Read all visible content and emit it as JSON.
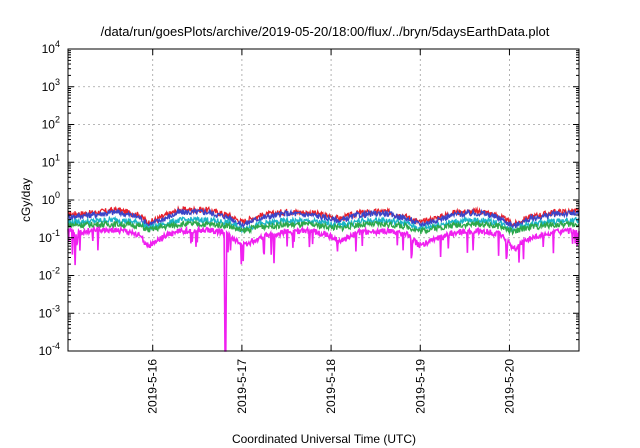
{
  "chart_data": {
    "type": "line",
    "title": "/data/run/goesPlots/archive/2019-05-20/18:00/flux/../bryn/5daysEarthData.plot",
    "xlabel": "Coordinated Universal Time (UTC)",
    "ylabel": "cGy/day",
    "yscale": "log",
    "ylim": [
      0.0001,
      10000
    ],
    "xlim": [
      15.05,
      20.78
    ],
    "x_unit": "day of 2019-05",
    "grid": true,
    "y_ticks": [
      {
        "value": 0.0001,
        "base": "10",
        "exp": "-4"
      },
      {
        "value": 0.001,
        "base": "10",
        "exp": "-3"
      },
      {
        "value": 0.01,
        "base": "10",
        "exp": "-2"
      },
      {
        "value": 0.1,
        "base": "10",
        "exp": "-1"
      },
      {
        "value": 1,
        "base": "10",
        "exp": "0"
      },
      {
        "value": 10,
        "base": "10",
        "exp": "1"
      },
      {
        "value": 100,
        "base": "10",
        "exp": "2"
      },
      {
        "value": 1000,
        "base": "10",
        "exp": "3"
      },
      {
        "value": 10000,
        "base": "10",
        "exp": "4"
      }
    ],
    "x_ticks": [
      {
        "value": 16,
        "label": "2019-5-16"
      },
      {
        "value": 17,
        "label": "2019-5-17"
      },
      {
        "value": 18,
        "label": "2019-5-18"
      },
      {
        "value": 19,
        "label": "2019-5-19"
      },
      {
        "value": 20,
        "label": "2019-5-20"
      }
    ],
    "series": [
      {
        "color": "#e8202a",
        "x": [
          15.05,
          15.3,
          15.6,
          15.85,
          15.95,
          16.1,
          16.3,
          16.6,
          16.85,
          17.0,
          17.2,
          17.5,
          17.8,
          17.95,
          18.1,
          18.3,
          18.6,
          18.85,
          19.0,
          19.15,
          19.4,
          19.7,
          19.9,
          20.05,
          20.2,
          20.5,
          20.78
        ],
        "y": [
          0.42,
          0.45,
          0.55,
          0.4,
          0.25,
          0.35,
          0.55,
          0.55,
          0.4,
          0.26,
          0.38,
          0.5,
          0.45,
          0.38,
          0.32,
          0.45,
          0.5,
          0.36,
          0.25,
          0.32,
          0.48,
          0.5,
          0.36,
          0.22,
          0.34,
          0.48,
          0.5
        ]
      },
      {
        "color": "#3a45c8",
        "x": [
          15.05,
          15.3,
          15.6,
          15.85,
          15.95,
          16.1,
          16.3,
          16.6,
          16.85,
          17.0,
          17.2,
          17.5,
          17.8,
          17.95,
          18.1,
          18.3,
          18.6,
          18.85,
          19.0,
          19.15,
          19.4,
          19.7,
          19.9,
          20.05,
          20.2,
          20.5,
          20.78
        ],
        "y": [
          0.36,
          0.4,
          0.48,
          0.35,
          0.22,
          0.3,
          0.47,
          0.48,
          0.35,
          0.22,
          0.33,
          0.44,
          0.4,
          0.33,
          0.28,
          0.4,
          0.45,
          0.32,
          0.22,
          0.28,
          0.42,
          0.45,
          0.32,
          0.2,
          0.3,
          0.42,
          0.45
        ]
      },
      {
        "color": "#1ab4c8",
        "x": [
          15.05,
          15.3,
          15.6,
          15.85,
          15.95,
          16.1,
          16.3,
          16.6,
          16.85,
          17.0,
          17.2,
          17.5,
          17.8,
          17.95,
          18.1,
          18.3,
          18.6,
          18.85,
          19.0,
          19.15,
          19.4,
          19.7,
          19.9,
          20.05,
          20.2,
          20.5,
          20.78
        ],
        "y": [
          0.26,
          0.27,
          0.3,
          0.25,
          0.18,
          0.22,
          0.29,
          0.3,
          0.25,
          0.17,
          0.23,
          0.28,
          0.27,
          0.24,
          0.21,
          0.27,
          0.29,
          0.24,
          0.17,
          0.21,
          0.27,
          0.29,
          0.24,
          0.16,
          0.22,
          0.27,
          0.29
        ]
      },
      {
        "color": "#2ea84a",
        "x": [
          15.05,
          15.3,
          15.6,
          15.85,
          15.95,
          16.1,
          16.3,
          16.6,
          16.85,
          17.0,
          17.2,
          17.5,
          17.8,
          17.95,
          18.1,
          18.3,
          18.6,
          18.85,
          19.0,
          19.15,
          19.4,
          19.7,
          19.9,
          20.05,
          20.2,
          20.5,
          20.78
        ],
        "y": [
          0.22,
          0.22,
          0.23,
          0.21,
          0.16,
          0.19,
          0.23,
          0.23,
          0.21,
          0.15,
          0.2,
          0.22,
          0.22,
          0.2,
          0.18,
          0.22,
          0.23,
          0.2,
          0.15,
          0.18,
          0.22,
          0.23,
          0.2,
          0.14,
          0.19,
          0.22,
          0.23
        ]
      },
      {
        "color": "#f020f0",
        "x": [
          15.05,
          15.12,
          15.13,
          15.14,
          15.3,
          15.6,
          15.85,
          15.95,
          16.1,
          16.3,
          16.6,
          16.8,
          16.81,
          16.815,
          16.82,
          16.83,
          16.9,
          17.0,
          17.2,
          17.35,
          17.36,
          17.37,
          17.5,
          17.8,
          17.95,
          18.1,
          18.3,
          18.6,
          18.85,
          19.0,
          19.15,
          19.4,
          19.7,
          19.9,
          20.05,
          20.2,
          20.5,
          20.78
        ],
        "y": [
          0.15,
          0.14,
          0.02,
          0.13,
          0.16,
          0.16,
          0.12,
          0.06,
          0.1,
          0.15,
          0.16,
          0.14,
          0.0001,
          0.0001,
          0.0001,
          0.12,
          0.1,
          0.06,
          0.1,
          0.14,
          0.02,
          0.12,
          0.15,
          0.15,
          0.12,
          0.08,
          0.14,
          0.15,
          0.12,
          0.06,
          0.09,
          0.14,
          0.15,
          0.12,
          0.05,
          0.09,
          0.14,
          0.15
        ]
      }
    ]
  }
}
